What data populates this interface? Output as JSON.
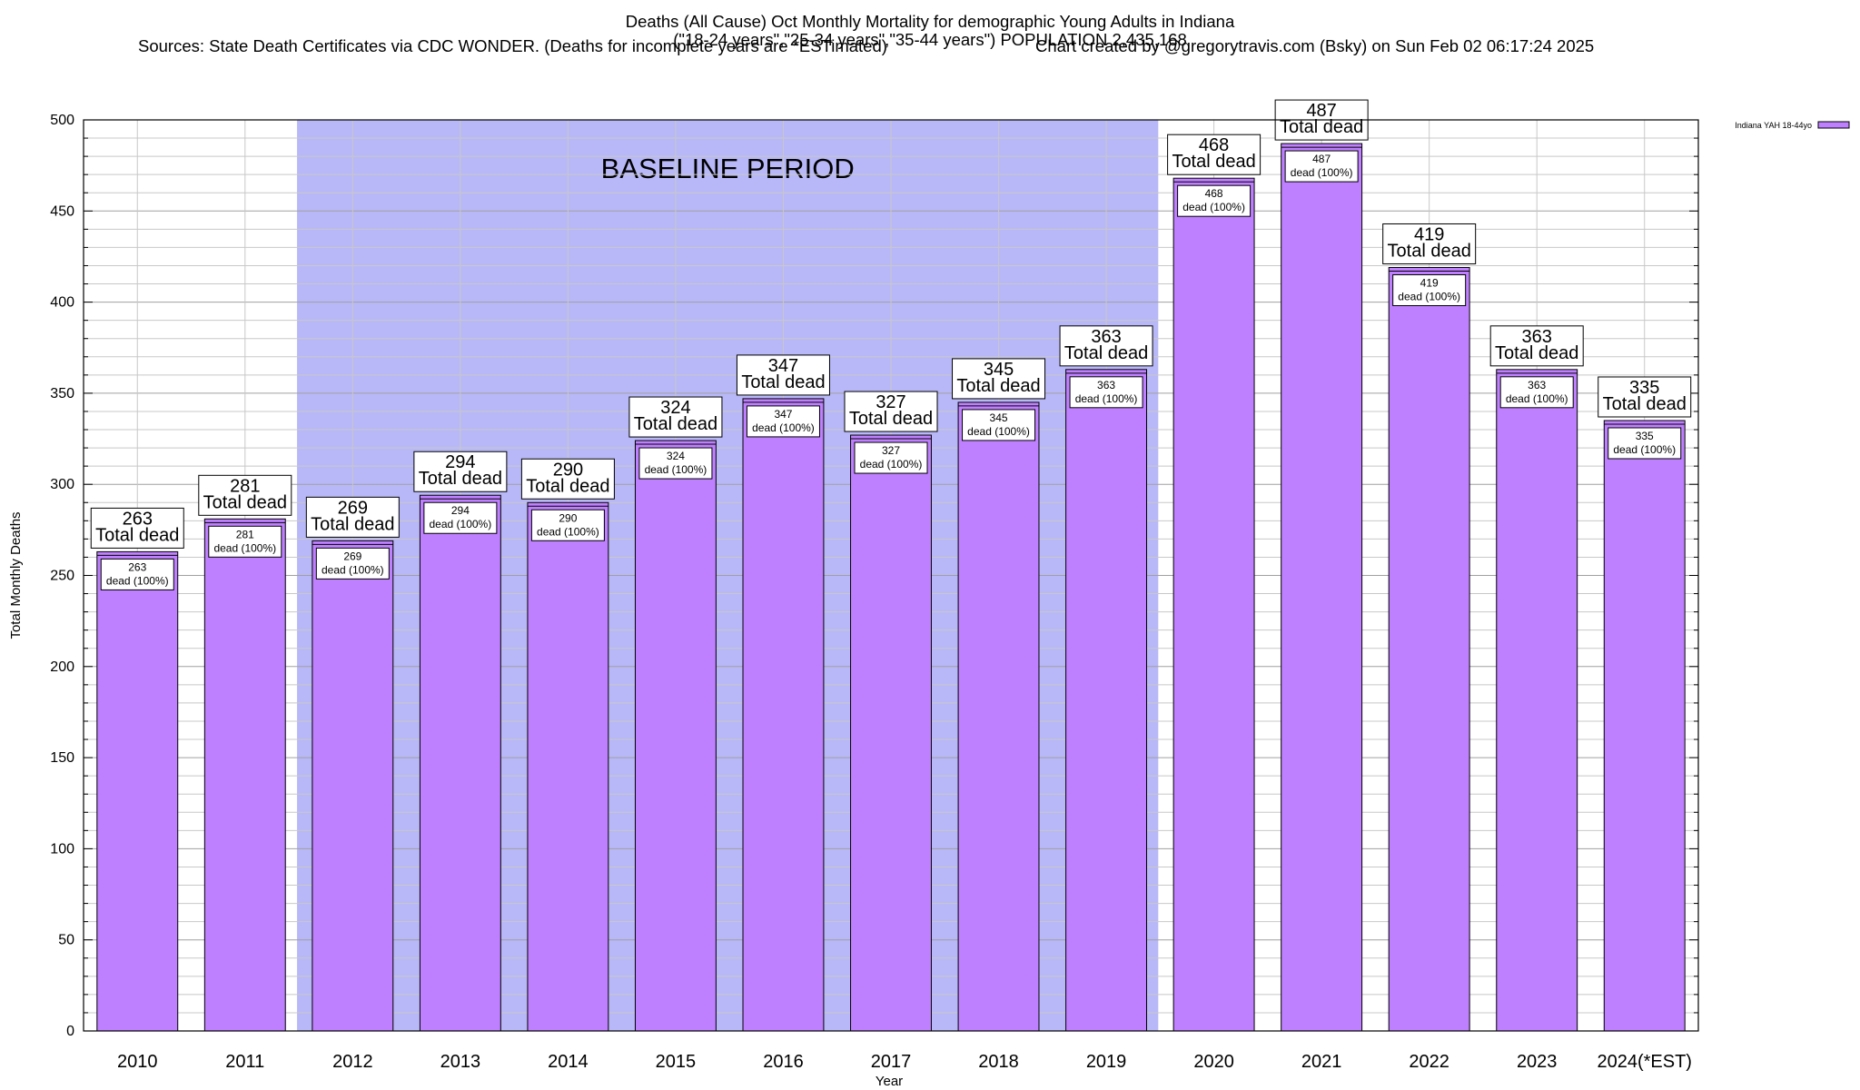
{
  "header": {
    "title": "Deaths (All Cause) Oct Monthly Mortality for demographic Young Adults in Indiana",
    "subtitle": "(\"18-24 years\",\"25-34 years\",\"35-44 years\") POPULATION 2,435,168",
    "sources": "Sources: State Death Certificates via CDC WONDER. (Deaths for incomplete years are *ESTimated)",
    "credit": "Chart created by @gregorytravis.com (Bsky) on Sun Feb 02 06:17:24 2025"
  },
  "chart_data": {
    "type": "bar",
    "title": "Deaths (All Cause) Oct Monthly Mortality for demographic Young Adults in Indiana",
    "xlabel": "Year",
    "ylabel": "Total Monthly Deaths",
    "ylim": [
      0,
      500
    ],
    "yticks": [
      0,
      50,
      100,
      150,
      200,
      250,
      300,
      350,
      400,
      450,
      500
    ],
    "grid": true,
    "legend_position": "top-right",
    "categories": [
      "2010",
      "2011",
      "2012",
      "2013",
      "2014",
      "2015",
      "2016",
      "2017",
      "2018",
      "2019",
      "2020",
      "2021",
      "2022",
      "2023",
      "2024(*EST)"
    ],
    "series": [
      {
        "name": "Indiana YAH 18-44yo",
        "values": [
          263,
          281,
          269,
          294,
          290,
          324,
          347,
          327,
          345,
          363,
          468,
          487,
          419,
          363,
          335
        ]
      }
    ],
    "total_label_suffix": "Total dead",
    "inner_label_suffix": "dead (100%)",
    "shaded_region": {
      "label": "BASELINE PERIOD",
      "from": "2012",
      "to": "2019"
    },
    "colors": {
      "bar": "#bf80ff",
      "baseline": "#b8b8f8",
      "grid": "#b0b0b0"
    }
  }
}
